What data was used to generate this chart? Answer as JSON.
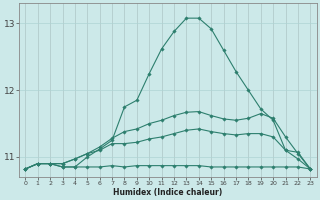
{
  "xlabel": "Humidex (Indice chaleur)",
  "x": [
    0,
    1,
    2,
    3,
    4,
    5,
    6,
    7,
    8,
    9,
    10,
    11,
    12,
    13,
    14,
    15,
    16,
    17,
    18,
    19,
    20,
    21,
    22,
    23
  ],
  "line1": [
    10.82,
    10.9,
    10.9,
    10.85,
    10.85,
    10.85,
    10.85,
    10.87,
    10.85,
    10.87,
    10.87,
    10.87,
    10.87,
    10.87,
    10.87,
    10.85,
    10.85,
    10.85,
    10.85,
    10.85,
    10.85,
    10.85,
    10.85,
    10.82
  ],
  "line2": [
    10.82,
    10.9,
    10.9,
    10.9,
    10.97,
    11.05,
    11.1,
    11.2,
    11.2,
    11.22,
    11.27,
    11.3,
    11.35,
    11.4,
    11.42,
    11.38,
    11.35,
    11.33,
    11.35,
    11.35,
    11.3,
    11.1,
    10.97,
    10.82
  ],
  "line3": [
    10.82,
    10.9,
    10.9,
    10.9,
    10.97,
    11.05,
    11.15,
    11.28,
    11.38,
    11.42,
    11.5,
    11.55,
    11.62,
    11.67,
    11.68,
    11.62,
    11.57,
    11.55,
    11.58,
    11.65,
    11.58,
    11.3,
    11.05,
    10.82
  ],
  "line4": [
    10.82,
    10.9,
    10.9,
    10.85,
    10.85,
    11.0,
    11.12,
    11.25,
    11.75,
    11.85,
    12.25,
    12.62,
    12.88,
    13.08,
    13.08,
    12.92,
    12.6,
    12.28,
    12.0,
    11.72,
    11.55,
    11.1,
    11.07,
    10.82
  ],
  "bg_color": "#cce9e9",
  "grid_color": "#aed4d4",
  "line_color": "#2d7f6e",
  "ylim": [
    10.7,
    13.3
  ],
  "yticks": [
    11,
    12,
    13
  ],
  "xlim": [
    -0.5,
    23.5
  ],
  "figsize": [
    3.2,
    2.0
  ],
  "dpi": 100
}
